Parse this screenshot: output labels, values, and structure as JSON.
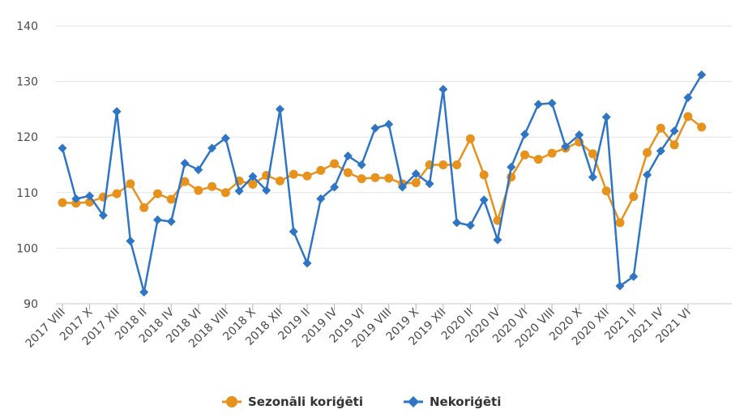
{
  "chart_data": {
    "type": "line",
    "ylim": [
      90,
      140
    ],
    "yticks": [
      90,
      100,
      110,
      120,
      130,
      140
    ],
    "grid": true,
    "legend_position": "bottom",
    "x": [
      "2017 VIII",
      "2017 IX",
      "2017 X",
      "2017 XI",
      "2017 XII",
      "2018 I",
      "2018 II",
      "2018 III",
      "2018 IV",
      "2018 V",
      "2018 VI",
      "2018 VII",
      "2018 VIII",
      "2018 IX",
      "2018 X",
      "2018 XI",
      "2018 XII",
      "2019 I",
      "2019 II",
      "2019 III",
      "2019 IV",
      "2019 V",
      "2019 VI",
      "2019 VII",
      "2019 VIII",
      "2019 IX",
      "2019 X",
      "2019 XI",
      "2019 XII",
      "2020 I",
      "2020 II",
      "2020 III",
      "2020 IV",
      "2020 V",
      "2020 VI",
      "2020 VII",
      "2020 VIII",
      "2020 IX",
      "2020 X",
      "2020 XI",
      "2020 XII",
      "2021 I",
      "2021 II",
      "2021 III",
      "2021 IV",
      "2021 V",
      "2021 VI",
      "2021 VII"
    ],
    "x_tick_labels": [
      "2017 VIII",
      "2017 X",
      "2017 XII",
      "2018 II",
      "2018 IV",
      "2018 VI",
      "2018 VIII",
      "2018 X",
      "2018 XII",
      "2019 II",
      "2019 IV",
      "2019 VI",
      "2019 VIII",
      "2019 X",
      "2019 XII",
      "2020 II",
      "2020 IV",
      "2020 VI",
      "2020 VIII",
      "2020 X",
      "2020 XII",
      "2021 II",
      "2021 IV",
      "2021 VI"
    ],
    "series": [
      {
        "name": "Sezonāli koriģēti",
        "color": "#E8921E",
        "marker": "circle",
        "values": [
          108.2,
          108.1,
          108.3,
          109.2,
          109.8,
          111.6,
          107.3,
          109.8,
          108.8,
          112.0,
          110.4,
          111.1,
          110.0,
          112.1,
          111.5,
          113.1,
          112.1,
          113.3,
          113.0,
          114.0,
          115.2,
          113.6,
          112.5,
          112.7,
          112.6,
          111.6,
          111.8,
          115.0,
          115.0,
          115.0,
          119.7,
          113.2,
          105.0,
          112.8,
          116.8,
          116.0,
          117.1,
          118.0,
          119.1,
          117.0,
          110.3,
          104.6,
          109.3,
          117.2,
          121.6,
          118.6,
          123.7,
          121.8
        ]
      },
      {
        "name": "Nekoriģēti",
        "color": "#2E75C6",
        "marker": "diamond",
        "values": [
          118.0,
          108.9,
          109.4,
          105.9,
          124.6,
          101.3,
          92.1,
          105.1,
          104.8,
          115.3,
          114.1,
          118.0,
          119.8,
          110.3,
          112.9,
          110.4,
          125.0,
          103.0,
          97.3,
          108.9,
          111.0,
          116.6,
          115.0,
          121.6,
          122.3,
          111.0,
          113.4,
          111.6,
          128.6,
          104.6,
          104.1,
          108.7,
          101.5,
          114.6,
          120.5,
          125.9,
          126.1,
          118.3,
          120.4,
          112.8,
          123.6,
          93.2,
          94.9,
          113.2,
          117.5,
          121.1,
          127.1,
          131.2
        ]
      }
    ]
  }
}
